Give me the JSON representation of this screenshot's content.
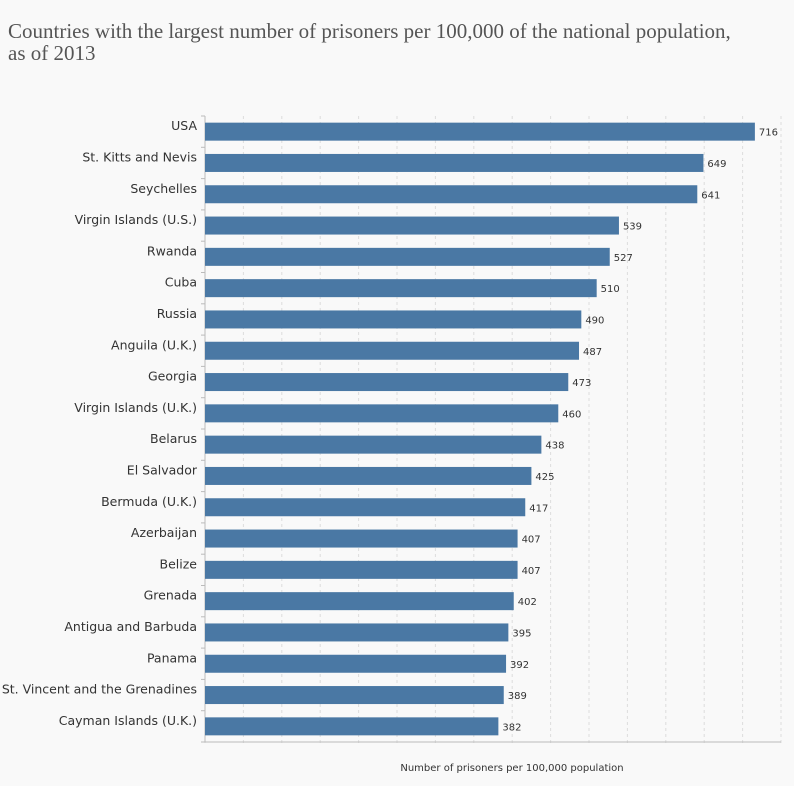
{
  "chart_data": {
    "type": "hbar",
    "title": "Countries with the largest number of prisoners per 100,000 of the national population, as of 2013",
    "x_label": "Number of prisoners per 100,000 population",
    "categories": [
      "USA",
      "St. Kitts and Nevis",
      "Seychelles",
      "Virgin Islands (U.S.)",
      "Rwanda",
      "Cuba",
      "Russia",
      "Anguila (U.K.)",
      "Georgia",
      "Virgin Islands (U.K.)",
      "Belarus",
      "El Salvador",
      "Bermuda (U.K.)",
      "Azerbaijan",
      "Belize",
      "Grenada",
      "Antigua and Barbuda",
      "Panama",
      "St. Vincent and the Grenadines",
      "Cayman Islands (U.K.)"
    ],
    "values": [
      716,
      649,
      641,
      539,
      527,
      510,
      490,
      487,
      473,
      460,
      438,
      425,
      417,
      407,
      407,
      402,
      395,
      392,
      389,
      382
    ],
    "color": "#4a78a4",
    "xlim": [
      0,
      750
    ],
    "xticks": [
      0,
      50,
      100,
      150,
      200,
      250,
      300,
      350,
      400,
      450,
      500,
      550,
      600,
      650,
      700,
      750
    ],
    "grid": true
  }
}
